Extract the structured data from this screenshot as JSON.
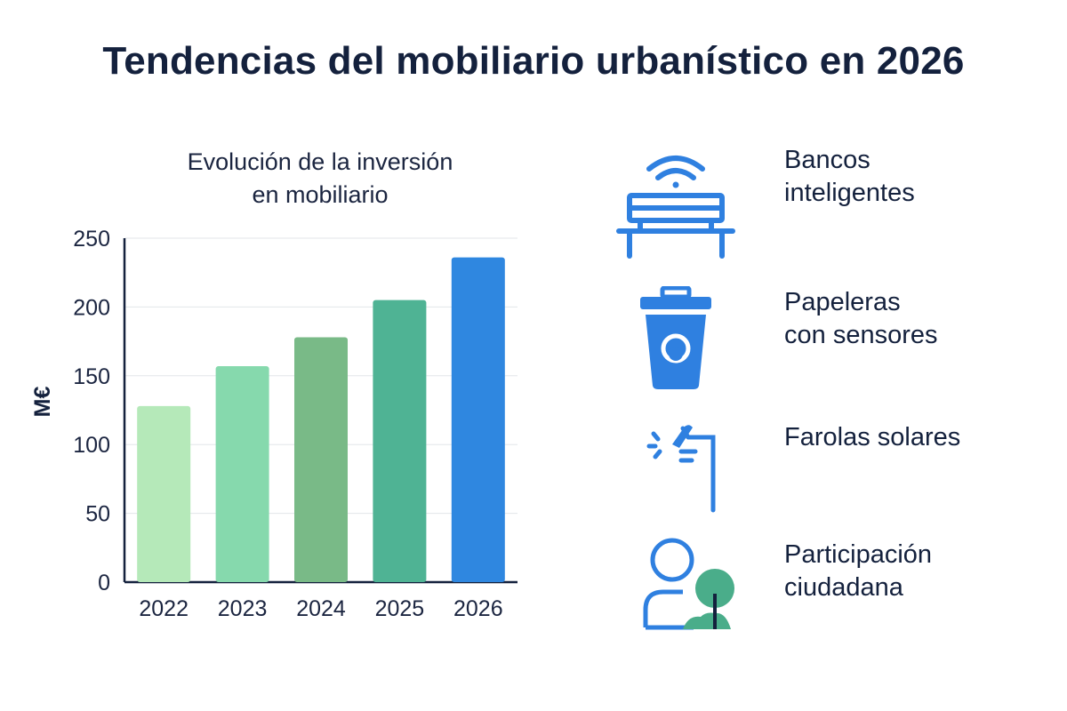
{
  "title": "Tendencias del mobiliario urbanístico en 2026",
  "colors": {
    "text": "#14213d",
    "icon_blue": "#2f80e0",
    "icon_green": "#4aad8a",
    "bar_colors": [
      "#b5e9b9",
      "#86d9ad",
      "#79ba87",
      "#4fb394",
      "#2f87e0"
    ]
  },
  "chart_data": {
    "type": "bar",
    "title": "Evolución de la inversión\nen mobiliario",
    "ylabel": "M€",
    "xlabel": "",
    "categories": [
      "2022",
      "2023",
      "2024",
      "2025",
      "2026"
    ],
    "values": [
      128,
      157,
      178,
      205,
      236
    ],
    "ylim": [
      0,
      250
    ],
    "yticks": [
      0,
      50,
      100,
      150,
      200,
      250
    ],
    "grid": true
  },
  "trends": [
    {
      "icon": "smart-bench-icon",
      "label": "Bancos\ninteligentes"
    },
    {
      "icon": "sensor-bin-icon",
      "label": "Papeleras\ncon sensores"
    },
    {
      "icon": "solar-streetlight-icon",
      "label": "Farolas solares"
    },
    {
      "icon": "citizen-participation-icon",
      "label": "Participación\nciudadana"
    }
  ]
}
